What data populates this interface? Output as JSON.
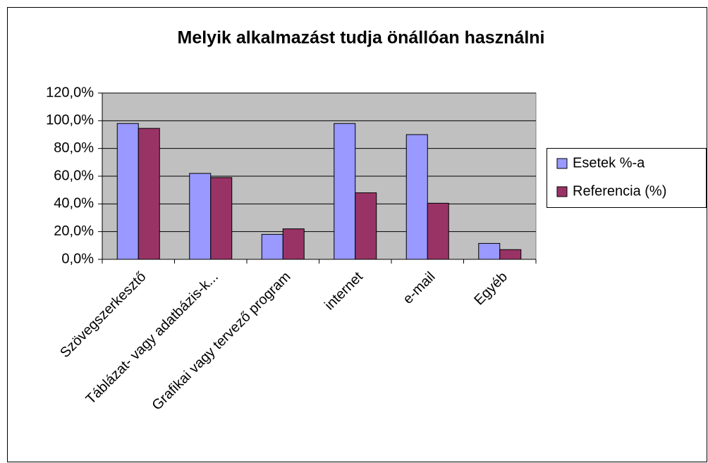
{
  "chart_data": {
    "type": "bar",
    "title": "Melyik alkalmazást tudja önállóan használni",
    "categories": [
      "Szövegszerkesztő",
      "Táblázat- vagy adatbázis-k...",
      "Grafikai vagy tervező program",
      "internet",
      "e-mail",
      "Egyéb"
    ],
    "series": [
      {
        "name": "Esetek %-a",
        "color": "#9999ff",
        "values": [
          98,
          62,
          18,
          98,
          90,
          11.5
        ]
      },
      {
        "name": "Referencia (%)",
        "color": "#993366",
        "values": [
          94.5,
          59,
          22,
          48,
          40.5,
          7
        ]
      }
    ],
    "ylim": [
      0,
      120
    ],
    "yticks": [
      {
        "value": 0,
        "label": "0,0%"
      },
      {
        "value": 20,
        "label": "20,0%"
      },
      {
        "value": 40,
        "label": "40,0%"
      },
      {
        "value": 60,
        "label": "60,0%"
      },
      {
        "value": 80,
        "label": "80,0%"
      },
      {
        "value": 100,
        "label": "100,0%"
      },
      {
        "value": 120,
        "label": "120,0%"
      }
    ],
    "grid": true,
    "plot_background": "#c0c0c0",
    "legend": "right"
  }
}
